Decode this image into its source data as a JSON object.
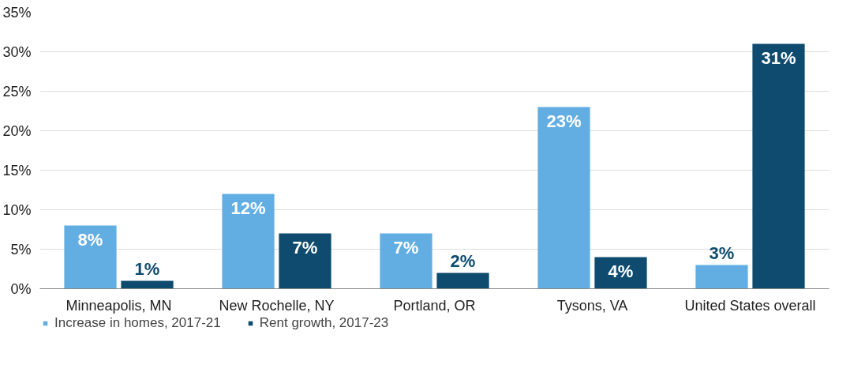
{
  "chart_data": {
    "type": "bar",
    "categories": [
      "Minneapolis, MN",
      "New Rochelle, NY",
      "Portland, OR",
      "Tysons, VA",
      "United States overall"
    ],
    "series": [
      {
        "name": "Increase in homes, 2017-21",
        "color": "#62aee3",
        "values": [
          8,
          12,
          7,
          23,
          3
        ],
        "value_labels": [
          "8%",
          "12%",
          "7%",
          "23%",
          "3%"
        ]
      },
      {
        "name": "Rent growth, 2017-23",
        "color": "#0e4b6e",
        "values": [
          1,
          7,
          2,
          4,
          31
        ],
        "value_labels": [
          "1%",
          "7%",
          "2%",
          "4%",
          "31%"
        ]
      }
    ],
    "ylim": [
      0,
      35
    ],
    "yticks": [
      {
        "value": 0,
        "label": "0%"
      },
      {
        "value": 5,
        "label": "5%"
      },
      {
        "value": 10,
        "label": "10%"
      },
      {
        "value": 15,
        "label": "15%"
      },
      {
        "value": 20,
        "label": "20%"
      },
      {
        "value": 25,
        "label": "25%"
      },
      {
        "value": 30,
        "label": "30%"
      },
      {
        "value": 35,
        "label": "35%"
      }
    ],
    "grid": "y",
    "legend": "bottom left"
  }
}
